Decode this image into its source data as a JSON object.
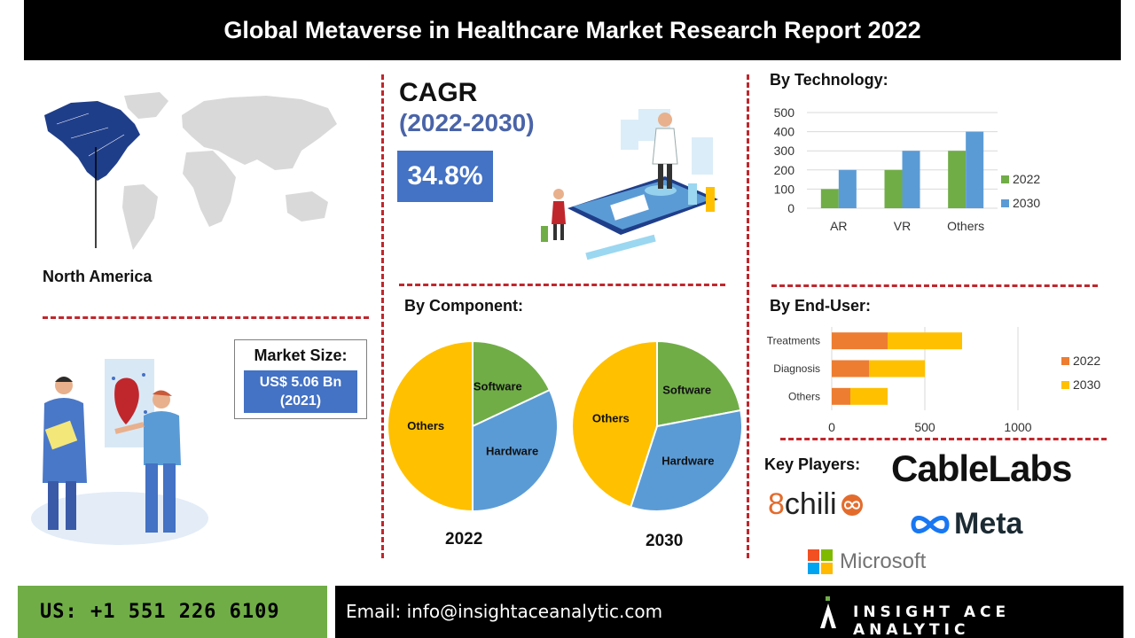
{
  "title": "Global Metaverse in Healthcare Market  Research Report 2022",
  "region": {
    "label": "North America"
  },
  "cagr": {
    "title": "CAGR",
    "period": "(2022-2030)",
    "value": "34.8%"
  },
  "market_size": {
    "title": "Market Size:",
    "value_line1": "US$ 5.06 Bn",
    "value_line2": "(2021)"
  },
  "sections": {
    "technology": "By Technology:",
    "component": "By Component:",
    "end_user": "By End-User:",
    "key_players": "Key Players:"
  },
  "key_players": {
    "cablelabs": "CableLabs",
    "chili_prefix": "8",
    "chili_word": "chili",
    "meta": "Meta",
    "microsoft": "Microsoft"
  },
  "footer": {
    "phone": "US: +1 551 226 6109",
    "email": "Email: info@insightaceanalytic.com",
    "brand": "INSIGHT ACE ANALYTIC"
  },
  "colors": {
    "series_2022_tech": "#70ad47",
    "series_2030_tech": "#5b9bd5",
    "series_2022_enduser": "#ed7d31",
    "series_2030_enduser": "#ffc000",
    "pie_others": "#ffc000",
    "pie_software": "#70ad47",
    "pie_hardware": "#5b9bd5",
    "accent_red": "#c0272d",
    "accent_blue": "#4472c4"
  },
  "chart_data": [
    {
      "type": "bar",
      "title": "By Technology:",
      "categories": [
        "AR",
        "VR",
        "Others"
      ],
      "series": [
        {
          "name": "2022",
          "values": [
            100,
            200,
            300
          ]
        },
        {
          "name": "2030",
          "values": [
            200,
            300,
            400
          ]
        }
      ],
      "ylim": [
        0,
        500
      ],
      "yticks": [
        "0",
        "100",
        "200",
        "300",
        "400",
        "500"
      ],
      "grid": true,
      "legend": "right"
    },
    {
      "type": "bar",
      "orientation": "horizontal",
      "stacked": true,
      "title": "By End-User:",
      "categories": [
        "Treatments",
        "Diagnosis",
        "Others"
      ],
      "series": [
        {
          "name": "2022",
          "values": [
            300,
            200,
            100
          ]
        },
        {
          "name": "2030",
          "values": [
            400,
            300,
            200
          ]
        }
      ],
      "xlim": [
        0,
        1200
      ],
      "xticks": [
        "0",
        "500",
        "1000"
      ],
      "grid": true,
      "legend": "right"
    },
    {
      "type": "pie",
      "title": "By Component:",
      "year": "2022",
      "slices": [
        {
          "name": "Others",
          "value": 50
        },
        {
          "name": "Software",
          "value": 18
        },
        {
          "name": "Hardware",
          "value": 32
        }
      ]
    },
    {
      "type": "pie",
      "title": "By Component:",
      "year": "2030",
      "slices": [
        {
          "name": "Others",
          "value": 45
        },
        {
          "name": "Software",
          "value": 22
        },
        {
          "name": "Hardware",
          "value": 33
        }
      ]
    }
  ]
}
